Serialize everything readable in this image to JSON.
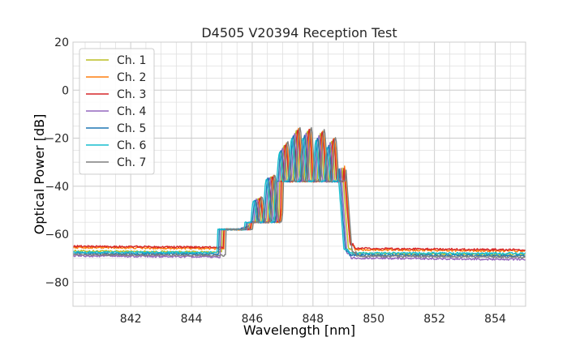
{
  "chart_data": {
    "type": "line",
    "title": "D4505 V20394 Reception Test",
    "xlabel": "Wavelength [nm]",
    "ylabel": "Optical Power [dB]",
    "xlim": [
      840.1,
      855.0
    ],
    "ylim": [
      -90,
      20
    ],
    "xticks": [
      842,
      844,
      846,
      848,
      850,
      852,
      854
    ],
    "xtick_labels": [
      "842",
      "844",
      "846",
      "848",
      "850",
      "852",
      "854"
    ],
    "yticks": [
      20,
      0,
      -20,
      -40,
      -60,
      -80
    ],
    "ytick_labels": [
      "20",
      "0",
      "−20",
      "−40",
      "−60",
      "−80"
    ],
    "grid": true,
    "legend_position": "top-left",
    "series": [
      {
        "name": "Ch. 1",
        "color": "#bcbd22",
        "floor_left": -67.0,
        "floor_right": -68.5,
        "shift": 0.0,
        "peak": -17.0
      },
      {
        "name": "Ch. 2",
        "color": "#ff7f0e",
        "floor_left": -65.5,
        "floor_right": -67.0,
        "shift": 0.08,
        "peak": -16.0
      },
      {
        "name": "Ch. 3",
        "color": "#d62728",
        "floor_left": -65.0,
        "floor_right": -66.5,
        "shift": 0.05,
        "peak": -16.5
      },
      {
        "name": "Ch. 4",
        "color": "#9467bd",
        "floor_left": -69.0,
        "floor_right": -70.5,
        "shift": -0.05,
        "peak": -18.0
      },
      {
        "name": "Ch. 5",
        "color": "#1f77b4",
        "floor_left": -68.0,
        "floor_right": -69.0,
        "shift": -0.1,
        "peak": -19.0
      },
      {
        "name": "Ch. 6",
        "color": "#17becf",
        "floor_left": -67.5,
        "floor_right": -68.0,
        "shift": -0.15,
        "peak": -20.0
      },
      {
        "name": "Ch. 7",
        "color": "#7f7f7f",
        "floor_left": -68.5,
        "floor_right": -69.5,
        "shift": 0.12,
        "peak": -15.5
      }
    ]
  }
}
